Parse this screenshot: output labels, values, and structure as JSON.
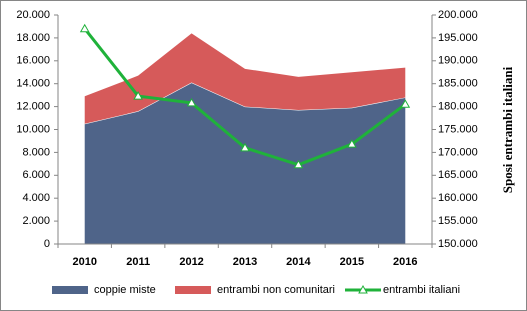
{
  "chart_data": {
    "type": "stacked-area-line",
    "y2_label": "Sposi entrambi italiani",
    "categories": [
      "2010",
      "2011",
      "2012",
      "2013",
      "2014",
      "2015",
      "2016"
    ],
    "series": [
      {
        "name": "coppie miste",
        "color": "#4f6489",
        "kind": "area",
        "values": [
          10500,
          11600,
          14100,
          12000,
          11700,
          11900,
          12800
        ]
      },
      {
        "name": "entrambi non comunitari",
        "color": "#d65a5a",
        "kind": "area",
        "values": [
          2400,
          3100,
          4300,
          3300,
          2900,
          3100,
          2600
        ]
      },
      {
        "name": "entrambi italiani",
        "color": "#1fb23a",
        "kind": "line",
        "axis": "y2",
        "values": [
          197000,
          182300,
          180800,
          171000,
          167300,
          171800,
          180500
        ]
      }
    ],
    "ylim": [
      0,
      20000
    ],
    "yticks": [
      0,
      {
        "value": 2000,
        "label": "2.000"
      },
      {
        "value": 4000,
        "label": "4.000"
      },
      {
        "value": 6000,
        "label": "6.000"
      },
      {
        "value": 8000,
        "label": "8.000"
      },
      {
        "value": 10000,
        "label": "10.000"
      },
      {
        "value": 12000,
        "label": "12.000"
      },
      {
        "value": 14000,
        "label": "14.000"
      },
      {
        "value": 16000,
        "label": "16.000"
      },
      {
        "value": 18000,
        "label": "18.000"
      },
      {
        "value": 20000,
        "label": "20.000"
      }
    ],
    "y2lim": [
      150000,
      200000
    ],
    "y2ticks": [
      {
        "value": 150000,
        "label": "150.000"
      },
      {
        "value": 155000,
        "label": "155.000"
      },
      {
        "value": 160000,
        "label": "160.000"
      },
      {
        "value": 165000,
        "label": "165.000"
      },
      {
        "value": 170000,
        "label": "170.000"
      },
      {
        "value": 175000,
        "label": "175.000"
      },
      {
        "value": 180000,
        "label": "180.000"
      },
      {
        "value": 185000,
        "label": "185.000"
      },
      {
        "value": 190000,
        "label": "190.000"
      },
      {
        "value": 195000,
        "label": "195.000"
      },
      {
        "value": 200000,
        "label": "200.000"
      }
    ]
  }
}
